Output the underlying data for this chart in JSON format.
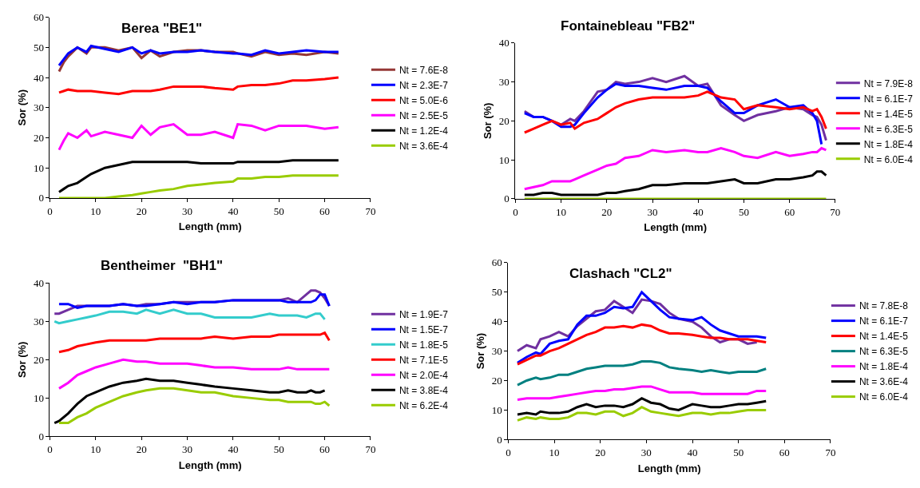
{
  "chart_data": [
    {
      "type": "line",
      "title": "Berea \"BE1\"",
      "xlabel": "Length (mm)",
      "ylabel": "Sor (%)",
      "xlim": [
        0,
        70
      ],
      "xticks": [
        0,
        10,
        20,
        30,
        40,
        50,
        60,
        70
      ],
      "ylim": [
        0,
        60
      ],
      "yticks": [
        0,
        10,
        20,
        30,
        40,
        50,
        60
      ],
      "legend": "right",
      "x": [
        2,
        3,
        4,
        6,
        8,
        9,
        12,
        15,
        18,
        20,
        22,
        24,
        27,
        30,
        33,
        36,
        40,
        41,
        44,
        47,
        50,
        53,
        56,
        60,
        63
      ],
      "series": [
        {
          "name": "Nt = 7.6E-8",
          "color": "#953735",
          "values": [
            42,
            45,
            47,
            50,
            48,
            50,
            50,
            49,
            50,
            46.5,
            49,
            47,
            48.5,
            49,
            49,
            48.5,
            48.5,
            48,
            47,
            48.5,
            47.5,
            48,
            47.5,
            48.5,
            48
          ]
        },
        {
          "name": "Nt = 2.3E-7",
          "color": "#0000ff",
          "values": [
            44,
            46,
            48,
            50,
            48.5,
            50.5,
            49.5,
            48.5,
            50,
            48,
            49,
            48,
            48.5,
            48.5,
            49,
            48.5,
            48,
            48,
            47.5,
            49,
            48,
            48.5,
            49,
            48.5,
            48.5
          ]
        },
        {
          "name": "Nt = 5.0E-6",
          "color": "#ff0000",
          "values": [
            35,
            35.5,
            36,
            35.5,
            35.5,
            35.5,
            35,
            34.5,
            35.5,
            35.5,
            35.5,
            36,
            37,
            37,
            37,
            36.5,
            36,
            37,
            37.5,
            37.5,
            38,
            39,
            39,
            39.5,
            40
          ]
        },
        {
          "name": "Nt = 2.5E-5",
          "color": "#ff00ff",
          "values": [
            16,
            19,
            21.5,
            20,
            22.5,
            20.5,
            22,
            21,
            20,
            24,
            21,
            23.5,
            24.5,
            21,
            21,
            22,
            20,
            24.5,
            24,
            22.5,
            24,
            24,
            24,
            23,
            23.5
          ]
        },
        {
          "name": "Nt = 1.2E-4",
          "color": "#000000",
          "values": [
            2,
            3,
            4,
            5,
            7,
            8,
            10,
            11,
            12,
            12,
            12,
            12,
            12,
            12,
            11.5,
            11.5,
            11.5,
            12,
            12,
            12,
            12,
            12.5,
            12.5,
            12.5,
            12.5
          ]
        },
        {
          "name": "Nt = 3.6E-4",
          "color": "#99cc00",
          "values": [
            0,
            0,
            0,
            0,
            0,
            0,
            0,
            0.5,
            1,
            1.5,
            2,
            2.5,
            3,
            4,
            4.5,
            5,
            5.5,
            6.5,
            6.5,
            7,
            7,
            7.5,
            7.5,
            7.5,
            7.5
          ]
        }
      ]
    },
    {
      "type": "line",
      "title": "Fontainebleau \"FB2\"",
      "xlabel": "Length (mm)",
      "ylabel": "Sor (%)",
      "xlim": [
        0,
        70
      ],
      "xticks": [
        0,
        10,
        20,
        30,
        40,
        50,
        60,
        70
      ],
      "ylim": [
        0,
        40
      ],
      "yticks": [
        0,
        10,
        20,
        30,
        40
      ],
      "legend": "right",
      "x": [
        2,
        4,
        6,
        8,
        10,
        12,
        13,
        15,
        18,
        20,
        22,
        24,
        27,
        30,
        33,
        37,
        40,
        42,
        45,
        48,
        50,
        53,
        57,
        60,
        63,
        65,
        66,
        67,
        68
      ],
      "series": [
        {
          "name": "Nt = 7.9E-8",
          "color": "#7030a0",
          "values": [
            22.5,
            21,
            21,
            20,
            19,
            20.5,
            20,
            22.5,
            27.5,
            28,
            30,
            29.5,
            30,
            31,
            30,
            31.5,
            29,
            29.5,
            24,
            21.5,
            20,
            21.5,
            22.5,
            23.5,
            23,
            21.5,
            21,
            19,
            15
          ]
        },
        {
          "name": "Nt = 6.1E-7",
          "color": "#0000ff",
          "values": [
            22,
            21,
            21,
            20,
            18.5,
            18.5,
            19,
            22,
            26,
            28,
            29.5,
            29,
            29,
            28.5,
            28,
            29,
            29,
            28.5,
            25,
            22,
            22,
            24,
            25.5,
            23.5,
            24,
            22,
            20,
            14,
            null
          ]
        },
        {
          "name": "Nt = 1.4E-5",
          "color": "#ff0000",
          "values": [
            17,
            18,
            19,
            20,
            19,
            19.5,
            18,
            19.5,
            20.5,
            22,
            23.5,
            24.5,
            25.5,
            26,
            26,
            26,
            26.5,
            27.5,
            26,
            25.5,
            23,
            24,
            23.5,
            23,
            23.5,
            22.5,
            23,
            21,
            18
          ]
        },
        {
          "name": "Nt = 6.3E-5",
          "color": "#ff00ff",
          "values": [
            2.5,
            3,
            3.5,
            4.5,
            4.5,
            4.5,
            5,
            6,
            7.5,
            8.5,
            9,
            10.5,
            11,
            12.5,
            12,
            12.5,
            12,
            12,
            13,
            12,
            11,
            10.5,
            12,
            11,
            11.5,
            12,
            12,
            13,
            12.5
          ]
        },
        {
          "name": "Nt = 1.8E-4",
          "color": "#000000",
          "values": [
            1,
            1,
            1.5,
            1.5,
            1,
            1,
            1,
            1,
            1,
            1.5,
            1.5,
            2,
            2.5,
            3.5,
            3.5,
            4,
            4,
            4,
            4.5,
            5,
            4,
            4,
            5,
            5,
            5.5,
            6,
            7,
            7,
            6
          ]
        },
        {
          "name": "Nt = 6.0E-4",
          "color": "#99cc00",
          "values": [
            0,
            0,
            0,
            0,
            0,
            0,
            0,
            0,
            0,
            0,
            0,
            0,
            0,
            0,
            0,
            0,
            0,
            0,
            0,
            0,
            0,
            0,
            0,
            0,
            0,
            0,
            0,
            0,
            0
          ]
        }
      ]
    },
    {
      "type": "line",
      "title": "Bentheimer  \"BH1\"",
      "xlabel": "Length (mm)",
      "ylabel": "Sor (%)",
      "xlim": [
        0,
        70
      ],
      "xticks": [
        0,
        10,
        20,
        30,
        40,
        50,
        60,
        70
      ],
      "ylim": [
        0,
        40
      ],
      "yticks": [
        0,
        10,
        20,
        30,
        40
      ],
      "legend": "right",
      "x": [
        1,
        2,
        4,
        6,
        8,
        10,
        13,
        16,
        19,
        21,
        24,
        27,
        30,
        33,
        36,
        40,
        44,
        48,
        50,
        52,
        54,
        56,
        57,
        58,
        59,
        60,
        61
      ],
      "series": [
        {
          "name": "Nt = 1.9E-7",
          "color": "#7030a0",
          "values": [
            32,
            32,
            33,
            34,
            34,
            34,
            34,
            34.5,
            34,
            34.5,
            34.5,
            35,
            35,
            35,
            35,
            35.5,
            35.5,
            35.5,
            35.5,
            36,
            35,
            37,
            38,
            38,
            37.5,
            36,
            34
          ]
        },
        {
          "name": "Nt = 1.5E-7",
          "color": "#0000ff",
          "values": [
            null,
            34.5,
            34.5,
            33.5,
            34,
            34,
            34,
            34.5,
            34,
            34,
            34.5,
            35,
            34.5,
            35,
            35,
            35.5,
            35.5,
            35.5,
            35.5,
            35,
            35,
            35,
            35,
            35.5,
            37,
            37,
            34
          ]
        },
        {
          "name": "Nt = 1.8E-5",
          "color": "#33cccc",
          "values": [
            30,
            29.5,
            30,
            30.5,
            31,
            31.5,
            32.5,
            32.5,
            32,
            33,
            32,
            33,
            32,
            32,
            31,
            31,
            31,
            32,
            31.5,
            31.5,
            31.5,
            31,
            31.5,
            32,
            32,
            30.5,
            null
          ]
        },
        {
          "name": "Nt = 7.1E-5",
          "color": "#ff0000",
          "values": [
            null,
            22,
            22.5,
            23.5,
            24,
            24.5,
            25,
            25,
            25,
            25,
            25.5,
            25.5,
            25.5,
            25.5,
            26,
            25.5,
            26,
            26,
            26.5,
            26.5,
            26.5,
            26.5,
            26.5,
            26.5,
            26.5,
            27,
            25
          ]
        },
        {
          "name": "Nt = 2.0E-4",
          "color": "#ff00ff",
          "values": [
            null,
            12.5,
            14,
            16,
            17,
            18,
            19,
            20,
            19.5,
            19.5,
            19,
            19,
            19,
            18.5,
            18,
            18,
            17.5,
            17.5,
            17.5,
            18,
            17.5,
            17.5,
            17.5,
            17.5,
            17.5,
            17.5,
            17.5
          ]
        },
        {
          "name": "Nt = 3.8E-4",
          "color": "#000000",
          "values": [
            3.5,
            4,
            6,
            8.5,
            10.5,
            11.5,
            13,
            14,
            14.5,
            15,
            14.5,
            14.5,
            14,
            13.5,
            13,
            12.5,
            12,
            11.5,
            11.5,
            12,
            11.5,
            11.5,
            12,
            11.5,
            11.5,
            12,
            null
          ]
        },
        {
          "name": "Nt = 6.2E-4",
          "color": "#99cc00",
          "values": [
            null,
            3.5,
            3.5,
            5,
            6,
            7.5,
            9,
            10.5,
            11.5,
            12,
            12.5,
            12.5,
            12,
            11.5,
            11.5,
            10.5,
            10,
            9.5,
            9.5,
            9,
            9,
            9,
            9,
            8.5,
            8.5,
            9,
            8
          ]
        }
      ]
    },
    {
      "type": "line",
      "title": "Clashach \"CL2\"",
      "xlabel": "Length (mm)",
      "ylabel": "Sor (%)",
      "xlim": [
        0,
        70
      ],
      "xticks": [
        0,
        10,
        20,
        30,
        40,
        50,
        60,
        70
      ],
      "ylim": [
        0,
        60
      ],
      "yticks": [
        0,
        10,
        20,
        30,
        40,
        50,
        60
      ],
      "legend": "right",
      "x": [
        2,
        4,
        6,
        7,
        9,
        11,
        13,
        15,
        17,
        19,
        21,
        23,
        25,
        27,
        29,
        31,
        33,
        35,
        37,
        40,
        42,
        44,
        46,
        48,
        50,
        52,
        54,
        56
      ],
      "series": [
        {
          "name": "Nt = 7.8E-8",
          "color": "#7030a0",
          "values": [
            30,
            32,
            31,
            34,
            35,
            36.5,
            35,
            38.5,
            41,
            43.5,
            44,
            47,
            45,
            43,
            47.5,
            47,
            46,
            43,
            41,
            40,
            38,
            35,
            33,
            34,
            34,
            32.5,
            33,
            null
          ]
        },
        {
          "name": "Nt = 6.1E-7",
          "color": "#0000ff",
          "values": [
            26,
            28,
            29.5,
            29,
            32.5,
            33.5,
            34,
            39,
            42,
            42,
            43,
            45,
            44.5,
            45,
            50,
            47,
            44,
            41.5,
            41,
            40.5,
            41.5,
            39,
            37,
            36,
            35,
            35,
            35,
            34.5
          ]
        },
        {
          "name": "Nt = 1.4E-5",
          "color": "#ff0000",
          "values": [
            25.5,
            27,
            28.5,
            28.5,
            30,
            31,
            32.5,
            34,
            35.5,
            36.5,
            38,
            38,
            38.5,
            38,
            39,
            38.5,
            37,
            36,
            36,
            35.5,
            35,
            34.5,
            34.5,
            34,
            34,
            34,
            33.5,
            33
          ]
        },
        {
          "name": "Nt = 6.3E-5",
          "color": "#008080",
          "values": [
            18.5,
            20,
            21,
            20.5,
            21,
            22,
            22,
            23,
            24,
            24.5,
            25,
            25,
            25,
            25.5,
            26.5,
            26.5,
            26,
            24.5,
            24,
            23.5,
            23,
            23.5,
            23,
            22.5,
            23,
            23,
            23,
            24
          ]
        },
        {
          "name": "Nt = 1.8E-4",
          "color": "#ff00ff",
          "values": [
            13.5,
            14,
            14,
            14,
            14,
            14.5,
            15,
            15.5,
            16,
            16.5,
            16.5,
            17,
            17,
            17.5,
            18,
            18,
            17,
            16,
            16,
            16,
            15.5,
            15.5,
            15.5,
            15.5,
            15.5,
            15.5,
            16.5,
            16.5
          ]
        },
        {
          "name": "Nt = 3.6E-4",
          "color": "#000000",
          "values": [
            8.5,
            9,
            8.5,
            9.5,
            9,
            9,
            9.5,
            11,
            12,
            11,
            11.5,
            11.5,
            11,
            12,
            14,
            12.5,
            12,
            10.5,
            10,
            12,
            11.5,
            11,
            11,
            11.5,
            12,
            12,
            12.5,
            13
          ]
        },
        {
          "name": "Nt = 6.0E-4",
          "color": "#99cc00",
          "values": [
            6.5,
            7.5,
            7,
            7.5,
            7,
            7,
            7.5,
            9,
            9,
            8.5,
            9.5,
            9.5,
            8,
            9,
            11,
            9.5,
            9,
            8.5,
            8,
            9,
            9,
            8.5,
            9,
            9,
            9.5,
            10,
            10,
            10
          ]
        }
      ]
    }
  ]
}
